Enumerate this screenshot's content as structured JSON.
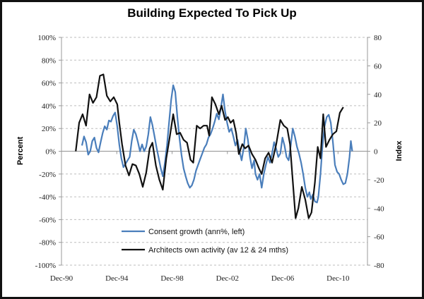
{
  "chart_data": {
    "type": "line",
    "title": "Building Expected To Pick Up",
    "xlabel": "",
    "ylabel": "Percent",
    "y2label": "Index",
    "xlim": [
      1990.92,
      2013.05
    ],
    "ylim": [
      -100,
      100
    ],
    "y2lim": [
      -80,
      80
    ],
    "x_ticks": [
      {
        "value": 1990.92,
        "label": "Dec-90"
      },
      {
        "value": 1994.92,
        "label": "Dec-94"
      },
      {
        "value": 1998.92,
        "label": "Dec-98"
      },
      {
        "value": 2002.92,
        "label": "Dec-02"
      },
      {
        "value": 2006.92,
        "label": "Dec-06"
      },
      {
        "value": 2010.92,
        "label": "Dec-10"
      }
    ],
    "y_ticks": [
      {
        "value": 100,
        "label": "100%"
      },
      {
        "value": 80,
        "label": "80%"
      },
      {
        "value": 60,
        "label": "60%"
      },
      {
        "value": 40,
        "label": "40%"
      },
      {
        "value": 20,
        "label": "20%"
      },
      {
        "value": 0,
        "label": "0%"
      },
      {
        "value": -20,
        "label": "-20%"
      },
      {
        "value": -40,
        "label": "-40%"
      },
      {
        "value": -60,
        "label": "-60%"
      },
      {
        "value": -80,
        "label": "-80%"
      },
      {
        "value": -100,
        "label": "-100%"
      }
    ],
    "y2_ticks": [
      {
        "value": 80,
        "label": "80"
      },
      {
        "value": 60,
        "label": "60"
      },
      {
        "value": 40,
        "label": "40"
      },
      {
        "value": 20,
        "label": "20"
      },
      {
        "value": 0,
        "label": "0"
      },
      {
        "value": -20,
        "label": "-20"
      },
      {
        "value": -40,
        "label": "-40"
      },
      {
        "value": -60,
        "label": "-60"
      },
      {
        "value": -80,
        "label": "-80"
      }
    ],
    "grid": true,
    "legend_position": "bottom-center",
    "series": [
      {
        "name": "Consent growth (ann%, left)",
        "axis": "left",
        "color": "#4a7ebb",
        "points": [
          [
            1992.4,
            5
          ],
          [
            1992.55,
            13
          ],
          [
            1992.7,
            8
          ],
          [
            1992.85,
            -3
          ],
          [
            1993.0,
            0
          ],
          [
            1993.15,
            9
          ],
          [
            1993.3,
            12
          ],
          [
            1993.45,
            3
          ],
          [
            1993.6,
            -1
          ],
          [
            1993.75,
            8
          ],
          [
            1993.9,
            16
          ],
          [
            1994.05,
            22
          ],
          [
            1994.2,
            19
          ],
          [
            1994.35,
            27
          ],
          [
            1994.5,
            26
          ],
          [
            1994.65,
            31
          ],
          [
            1994.8,
            34
          ],
          [
            1994.95,
            22
          ],
          [
            1995.1,
            6
          ],
          [
            1995.25,
            -6
          ],
          [
            1995.4,
            -14
          ],
          [
            1995.55,
            -11
          ],
          [
            1995.7,
            -8
          ],
          [
            1995.85,
            -5
          ],
          [
            1996.0,
            9
          ],
          [
            1996.15,
            19
          ],
          [
            1996.3,
            15
          ],
          [
            1996.45,
            8
          ],
          [
            1996.6,
            0
          ],
          [
            1996.75,
            6
          ],
          [
            1996.9,
            0
          ],
          [
            1997.05,
            4
          ],
          [
            1997.2,
            15
          ],
          [
            1997.35,
            30
          ],
          [
            1997.5,
            23
          ],
          [
            1997.65,
            13
          ],
          [
            1997.8,
            3
          ],
          [
            1997.95,
            -6
          ],
          [
            1998.1,
            -15
          ],
          [
            1998.25,
            -22
          ],
          [
            1998.4,
            -10
          ],
          [
            1998.55,
            5
          ],
          [
            1998.7,
            25
          ],
          [
            1998.85,
            45
          ],
          [
            1999.0,
            58
          ],
          [
            1999.15,
            52
          ],
          [
            1999.3,
            30
          ],
          [
            1999.45,
            12
          ],
          [
            1999.6,
            -3
          ],
          [
            1999.75,
            -15
          ],
          [
            1999.9,
            -22
          ],
          [
            2000.05,
            -28
          ],
          [
            2000.2,
            -32
          ],
          [
            2000.35,
            -30
          ],
          [
            2000.5,
            -25
          ],
          [
            2000.65,
            -17
          ],
          [
            2000.8,
            -12
          ],
          [
            2000.95,
            -7
          ],
          [
            2001.1,
            -2
          ],
          [
            2001.25,
            3
          ],
          [
            2001.4,
            6
          ],
          [
            2001.55,
            12
          ],
          [
            2001.7,
            15
          ],
          [
            2001.85,
            20
          ],
          [
            2002.0,
            26
          ],
          [
            2002.15,
            33
          ],
          [
            2002.3,
            28
          ],
          [
            2002.45,
            38
          ],
          [
            2002.6,
            50
          ],
          [
            2002.75,
            35
          ],
          [
            2002.9,
            25
          ],
          [
            2003.05,
            17
          ],
          [
            2003.2,
            20
          ],
          [
            2003.35,
            13
          ],
          [
            2003.5,
            5
          ],
          [
            2003.65,
            10
          ],
          [
            2003.8,
            0
          ],
          [
            2003.95,
            -8
          ],
          [
            2004.1,
            3
          ],
          [
            2004.25,
            20
          ],
          [
            2004.4,
            10
          ],
          [
            2004.55,
            -5
          ],
          [
            2004.7,
            -15
          ],
          [
            2004.85,
            -8
          ],
          [
            2004.95,
            -20
          ],
          [
            2005.1,
            -25
          ],
          [
            2005.25,
            -20
          ],
          [
            2005.4,
            -32
          ],
          [
            2005.55,
            -20
          ],
          [
            2005.7,
            -12
          ],
          [
            2005.85,
            -5
          ],
          [
            2006.0,
            -10
          ],
          [
            2006.15,
            -2
          ],
          [
            2006.3,
            8
          ],
          [
            2006.45,
            2
          ],
          [
            2006.6,
            -5
          ],
          [
            2006.75,
            -2
          ],
          [
            2006.9,
            12
          ],
          [
            2007.05,
            5
          ],
          [
            2007.2,
            -5
          ],
          [
            2007.35,
            -8
          ],
          [
            2007.5,
            5
          ],
          [
            2007.65,
            20
          ],
          [
            2007.8,
            13
          ],
          [
            2007.95,
            4
          ],
          [
            2008.1,
            -2
          ],
          [
            2008.25,
            -10
          ],
          [
            2008.4,
            -20
          ],
          [
            2008.55,
            -32
          ],
          [
            2008.7,
            -40
          ],
          [
            2008.85,
            -36
          ],
          [
            2008.95,
            -42
          ],
          [
            2009.1,
            -38
          ],
          [
            2009.25,
            -44
          ],
          [
            2009.4,
            -45
          ],
          [
            2009.5,
            -40
          ],
          [
            2009.65,
            -20
          ],
          [
            2009.8,
            5
          ],
          [
            2009.95,
            22
          ],
          [
            2010.1,
            30
          ],
          [
            2010.25,
            32
          ],
          [
            2010.4,
            25
          ],
          [
            2010.55,
            8
          ],
          [
            2010.7,
            -12
          ],
          [
            2010.85,
            -18
          ],
          [
            2011.0,
            -20
          ],
          [
            2011.15,
            -25
          ],
          [
            2011.3,
            -29
          ],
          [
            2011.45,
            -28
          ],
          [
            2011.6,
            -20
          ],
          [
            2011.75,
            -5
          ],
          [
            2011.85,
            9
          ],
          [
            2011.95,
            0
          ]
        ]
      },
      {
        "name": "Architects own activity (av 12 & 24 mths)",
        "axis": "right",
        "color": "#111111",
        "points": [
          [
            1991.95,
            0
          ],
          [
            1992.2,
            20
          ],
          [
            1992.45,
            26
          ],
          [
            1992.7,
            18
          ],
          [
            1992.95,
            40
          ],
          [
            1993.2,
            34
          ],
          [
            1993.45,
            38
          ],
          [
            1993.7,
            53
          ],
          [
            1993.95,
            54
          ],
          [
            1994.2,
            39
          ],
          [
            1994.45,
            35
          ],
          [
            1994.7,
            38
          ],
          [
            1994.95,
            33
          ],
          [
            1995.1,
            20
          ],
          [
            1995.3,
            5
          ],
          [
            1995.55,
            -10
          ],
          [
            1995.8,
            -17
          ],
          [
            1996.05,
            -9
          ],
          [
            1996.3,
            -10
          ],
          [
            1996.55,
            -16
          ],
          [
            1996.8,
            -25
          ],
          [
            1997.05,
            -15
          ],
          [
            1997.3,
            2
          ],
          [
            1997.5,
            6
          ],
          [
            1997.75,
            -10
          ],
          [
            1998.0,
            -20
          ],
          [
            1998.25,
            -27
          ],
          [
            1998.5,
            -5
          ],
          [
            1998.75,
            10
          ],
          [
            1999.0,
            26
          ],
          [
            1999.25,
            12
          ],
          [
            1999.5,
            13
          ],
          [
            1999.75,
            8
          ],
          [
            2000.0,
            6
          ],
          [
            2000.25,
            -6
          ],
          [
            2000.45,
            -8
          ],
          [
            2000.7,
            18
          ],
          [
            2000.95,
            16
          ],
          [
            2001.2,
            18
          ],
          [
            2001.45,
            18
          ],
          [
            2001.6,
            11
          ],
          [
            2001.8,
            38
          ],
          [
            2002.05,
            33
          ],
          [
            2002.3,
            26
          ],
          [
            2002.5,
            32
          ],
          [
            2002.75,
            22
          ],
          [
            2002.95,
            24
          ],
          [
            2003.15,
            20
          ],
          [
            2003.35,
            22
          ],
          [
            2003.55,
            13
          ],
          [
            2003.75,
            -2
          ],
          [
            2004.0,
            5
          ],
          [
            2004.2,
            2
          ],
          [
            2004.45,
            4
          ],
          [
            2004.7,
            -2
          ],
          [
            2004.95,
            -6
          ],
          [
            2005.2,
            -12
          ],
          [
            2005.4,
            -16
          ],
          [
            2005.65,
            -5
          ],
          [
            2005.9,
            -1
          ],
          [
            2006.15,
            -8
          ],
          [
            2006.45,
            5
          ],
          [
            2006.75,
            22
          ],
          [
            2007.0,
            18
          ],
          [
            2007.25,
            16
          ],
          [
            2007.45,
            5
          ],
          [
            2007.6,
            -15
          ],
          [
            2007.85,
            -47
          ],
          [
            2008.05,
            -40
          ],
          [
            2008.3,
            -25
          ],
          [
            2008.55,
            -34
          ],
          [
            2008.8,
            -47
          ],
          [
            2009.0,
            -43
          ],
          [
            2009.25,
            -22
          ],
          [
            2009.45,
            3
          ],
          [
            2009.65,
            -5
          ],
          [
            2009.85,
            26
          ],
          [
            2010.05,
            3
          ],
          [
            2010.3,
            8
          ],
          [
            2010.55,
            12
          ],
          [
            2010.8,
            14
          ],
          [
            2011.05,
            27
          ],
          [
            2011.3,
            31
          ]
        ]
      }
    ]
  }
}
